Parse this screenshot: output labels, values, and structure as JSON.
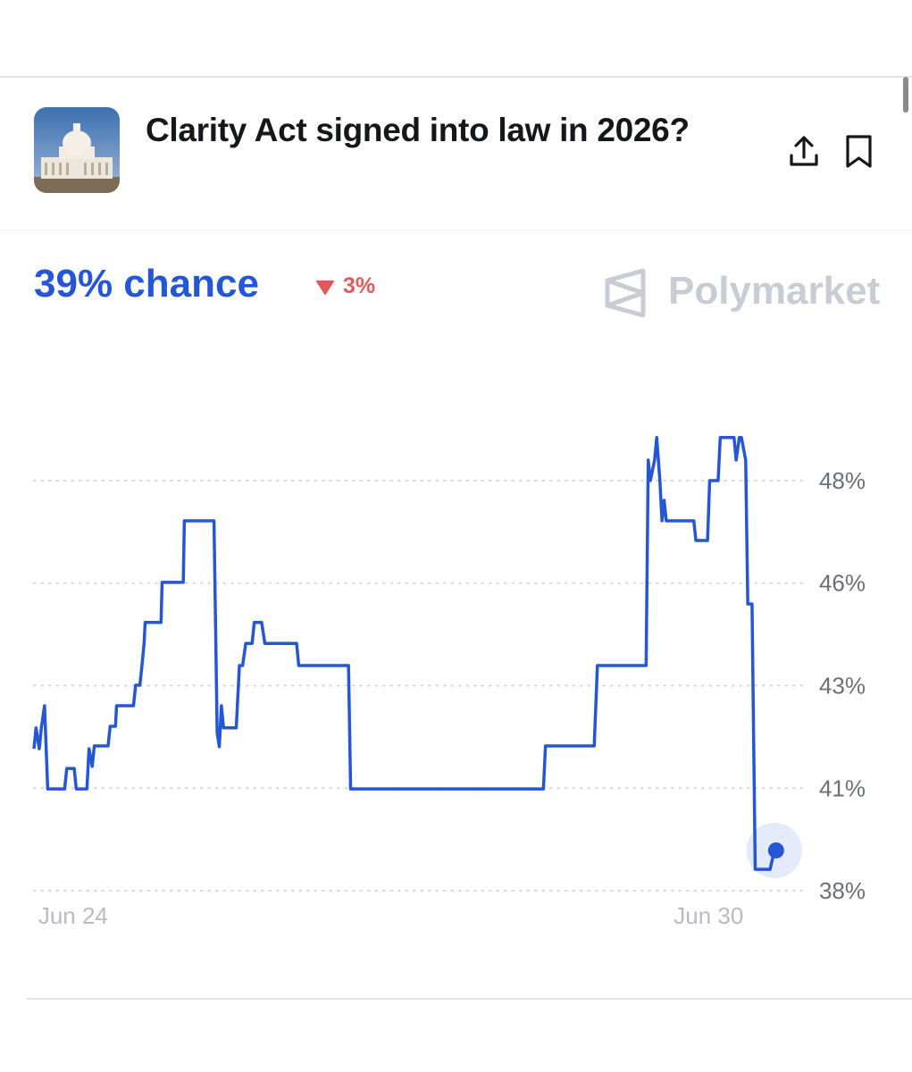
{
  "header": {
    "title": "Clarity Act signed into law in 2026?",
    "chance": "39% chance",
    "change": "3%",
    "brand": "Polymarket"
  },
  "chart_data": {
    "type": "line",
    "color": "#2456d6",
    "grid": true,
    "x": [
      23.63,
      23.65,
      23.68,
      23.7,
      23.73,
      23.76,
      23.92,
      23.94,
      24.01,
      24.03,
      24.13,
      24.15,
      24.18,
      24.2,
      24.33,
      24.35,
      24.4,
      24.41,
      24.57,
      24.59,
      24.63,
      24.65,
      24.67,
      24.68,
      24.83,
      24.84,
      25.04,
      25.05,
      25.33,
      25.36,
      25.38,
      25.4,
      25.42,
      25.54,
      25.57,
      25.6,
      25.63,
      25.69,
      25.71,
      25.78,
      25.81,
      26.11,
      26.13,
      26.6,
      26.62,
      28.44,
      28.46,
      28.92,
      28.95,
      29.41,
      29.43,
      29.45,
      29.49,
      29.51,
      29.54,
      29.56,
      29.58,
      29.6,
      29.86,
      29.88,
      29.99,
      30.01,
      30.09,
      30.11,
      30.24,
      30.26,
      30.29,
      30.31,
      30.35,
      30.37,
      30.41,
      30.44,
      30.58,
      30.62
    ],
    "values": [
      41.46,
      41.97,
      41.46,
      41.97,
      42.51,
      40.48,
      40.48,
      40.98,
      40.98,
      40.48,
      40.48,
      41.46,
      41.03,
      41.53,
      41.53,
      42.01,
      42.01,
      42.51,
      42.51,
      43.01,
      43.01,
      43.49,
      44.03,
      44.54,
      44.54,
      45.52,
      45.52,
      47.02,
      47.02,
      41.86,
      41.51,
      42.51,
      41.97,
      41.97,
      43.49,
      43.49,
      44.03,
      44.03,
      44.54,
      44.54,
      44.03,
      44.03,
      43.49,
      43.49,
      40.48,
      40.48,
      41.53,
      41.53,
      43.49,
      43.49,
      48.5,
      48.0,
      48.5,
      49.05,
      48.0,
      47.02,
      47.52,
      47.02,
      47.02,
      46.54,
      46.54,
      48.0,
      48.0,
      49.05,
      49.05,
      48.5,
      49.05,
      49.05,
      48.5,
      44.99,
      44.99,
      38.52,
      38.52,
      38.96
    ],
    "xlim": [
      23.63,
      30.63
    ],
    "xticks": [
      {
        "value": 24,
        "label": "Jun 24"
      },
      {
        "value": 30,
        "label": "Jun 30"
      }
    ],
    "ylim": [
      37.8,
      49.3
    ],
    "yticks": [
      {
        "value": 38,
        "label": "38%"
      },
      {
        "value": 40.5,
        "label": "41%"
      },
      {
        "value": 43,
        "label": "43%"
      },
      {
        "value": 45.5,
        "label": "46%"
      },
      {
        "value": 48,
        "label": "48%"
      }
    ]
  }
}
